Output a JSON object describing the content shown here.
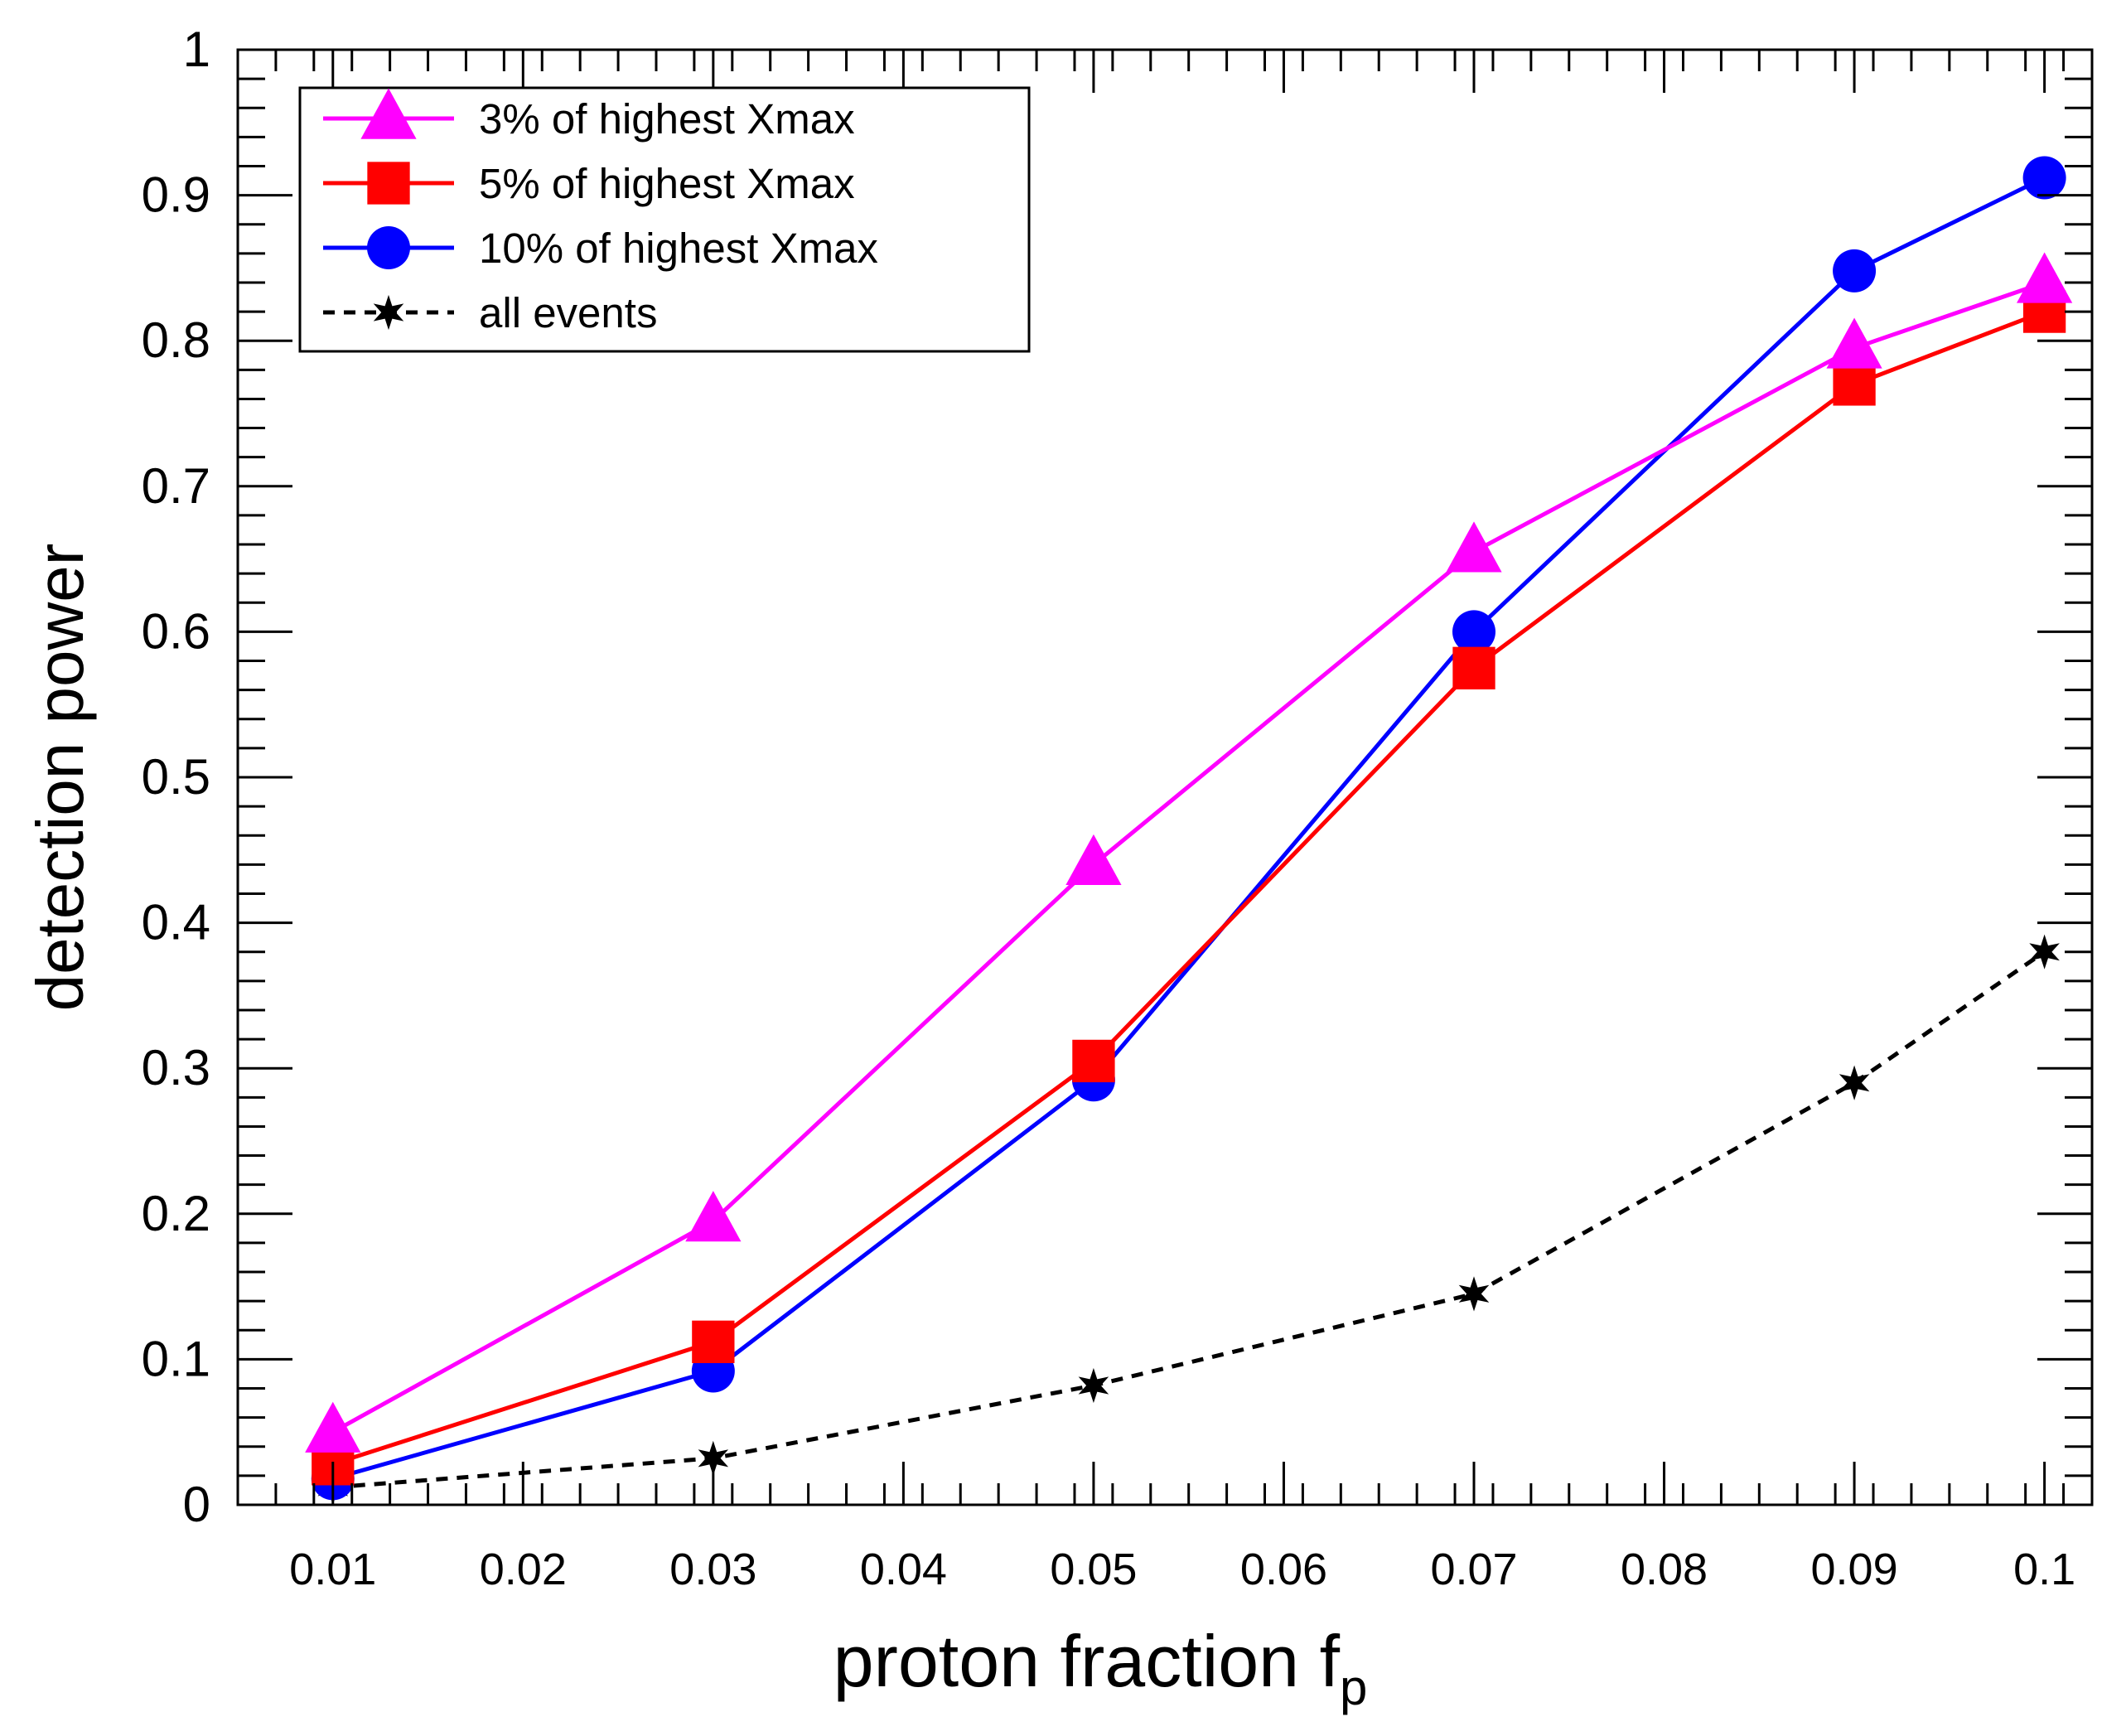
{
  "chart_data": {
    "type": "line",
    "title": "",
    "xlabel": "proton fraction f",
    "xlabel_subscript": "p",
    "ylabel": "detection power",
    "xlim": [
      0.005,
      0.1025
    ],
    "ylim": [
      0,
      1
    ],
    "x_ticks": [
      0.01,
      0.02,
      0.03,
      0.04,
      0.05,
      0.06,
      0.07,
      0.08,
      0.09,
      0.1
    ],
    "x_tick_labels": [
      "0.01",
      "0.02",
      "0.03",
      "0.04",
      "0.05",
      "0.06",
      "0.07",
      "0.08",
      "0.09",
      "0.1"
    ],
    "y_ticks": [
      0,
      0.1,
      0.2,
      0.3,
      0.4,
      0.5,
      0.6,
      0.7,
      0.8,
      0.9,
      1
    ],
    "y_tick_labels": [
      "0",
      "0.1",
      "0.2",
      "0.3",
      "0.4",
      "0.5",
      "0.6",
      "0.7",
      "0.8",
      "0.9",
      "1"
    ],
    "grid": false,
    "legend_position": "top-left",
    "series": [
      {
        "name": "3% of highest Xmax",
        "color": "#ff00ff",
        "marker": "triangle",
        "line": "solid",
        "x": [
          0.01,
          0.03,
          0.05,
          0.07,
          0.09,
          0.1
        ],
        "values": [
          0.05,
          0.195,
          0.44,
          0.655,
          0.795,
          0.84
        ]
      },
      {
        "name": "5% of highest Xmax",
        "color": "#ff0000",
        "marker": "square",
        "line": "solid",
        "x": [
          0.01,
          0.03,
          0.05,
          0.07,
          0.09,
          0.1
        ],
        "values": [
          0.028,
          0.112,
          0.305,
          0.575,
          0.77,
          0.82
        ]
      },
      {
        "name": "10% of highest Xmax",
        "color": "#0000ff",
        "marker": "circle",
        "line": "solid",
        "x": [
          0.01,
          0.03,
          0.05,
          0.07,
          0.09,
          0.1
        ],
        "values": [
          0.018,
          0.092,
          0.292,
          0.6,
          0.848,
          0.912
        ]
      },
      {
        "name": "all events",
        "color": "#000000",
        "marker": "star",
        "line": "dashed",
        "x": [
          0.01,
          0.03,
          0.05,
          0.07,
          0.09,
          0.1
        ],
        "values": [
          0.012,
          0.032,
          0.082,
          0.145,
          0.29,
          0.38
        ]
      }
    ]
  }
}
